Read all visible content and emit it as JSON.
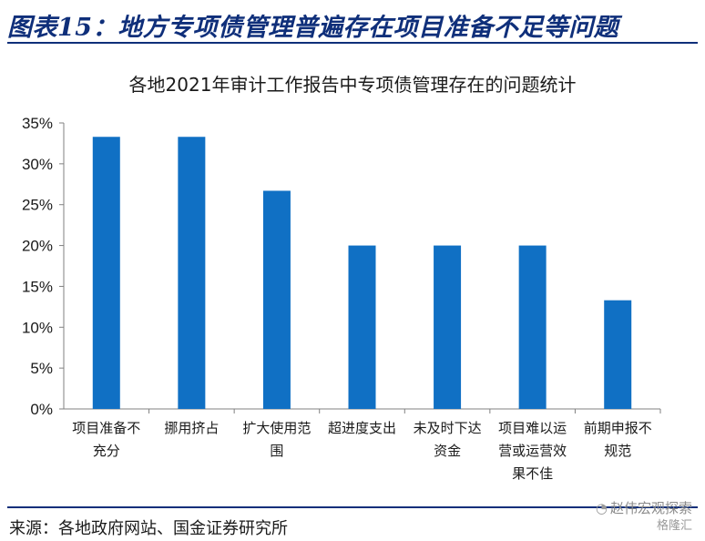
{
  "header": {
    "title": "图表15：地方专项债管理普遍存在项目准备不足等问题"
  },
  "footer": {
    "source": "来源：各地政府网站、国金证券研究所"
  },
  "watermark": {
    "account": "赵伟宏观探索",
    "brand": "格隆汇"
  },
  "colors": {
    "bar": "#1070c4",
    "accent": "#0f2f7a"
  },
  "chart_data": {
    "type": "bar",
    "title": "各地2021年审计工作报告中专项债管理存在的问题统计",
    "xlabel": "",
    "ylabel": "",
    "ylim": [
      0,
      35
    ],
    "yticks": [
      "0%",
      "5%",
      "10%",
      "15%",
      "20%",
      "25%",
      "30%",
      "35%"
    ],
    "ytick_values": [
      0,
      5,
      10,
      15,
      20,
      25,
      30,
      35
    ],
    "grid": false,
    "legend": "none",
    "categories": [
      [
        "项目准备不",
        "充分"
      ],
      [
        "挪用挤占"
      ],
      [
        "扩大使用范",
        "围"
      ],
      [
        "超进度支出"
      ],
      [
        "未及时下达",
        "资金"
      ],
      [
        "项目难以运",
        "营或运营效",
        "果不佳"
      ],
      [
        "前期申报不",
        "规范"
      ]
    ],
    "values": [
      33.3,
      33.3,
      26.7,
      20.0,
      20.0,
      20.0,
      13.3
    ]
  }
}
